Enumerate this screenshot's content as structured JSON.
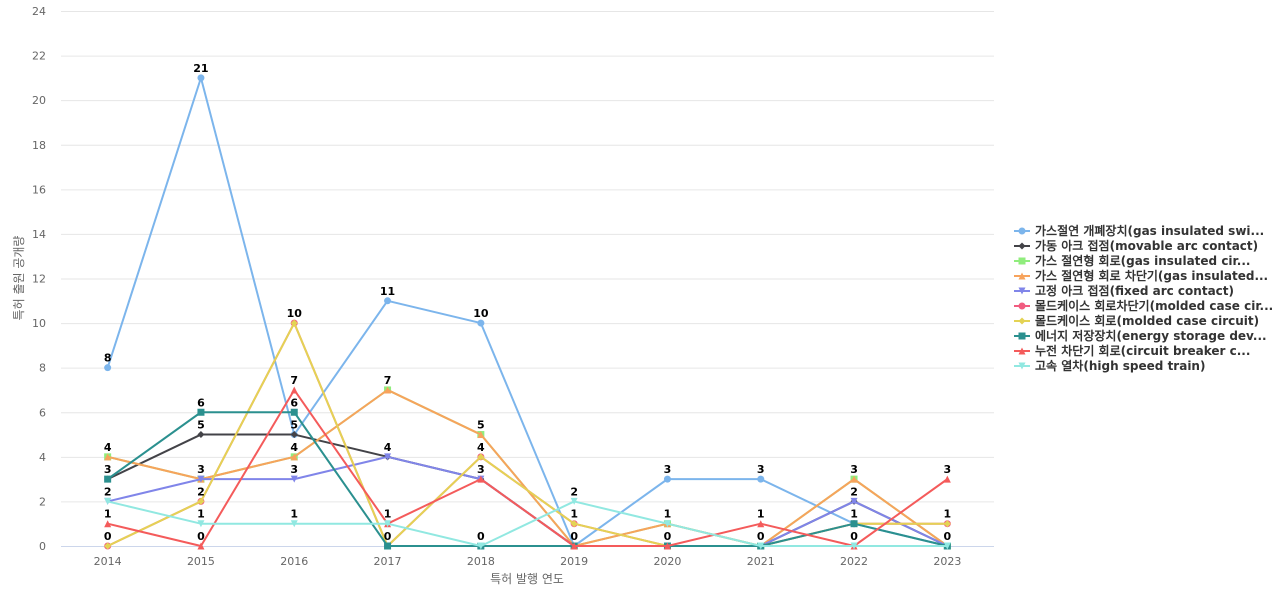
{
  "chart_data": {
    "type": "line",
    "title": "",
    "xlabel": "특허 발행 연도",
    "ylabel": "특허 출원 공개량",
    "x": [
      "2014",
      "2015",
      "2016",
      "2017",
      "2018",
      "2019",
      "2020",
      "2021",
      "2022",
      "2023"
    ],
    "ylim": [
      0,
      24
    ],
    "yticks": [
      0,
      2,
      4,
      6,
      8,
      10,
      12,
      14,
      16,
      18,
      20,
      22,
      24
    ],
    "grid": true,
    "legend_position": "right",
    "series": [
      {
        "name": "가스절연 개폐장치(gas insulated swi...",
        "color": "#7cb5ec",
        "marker": "circle",
        "values": [
          8,
          21,
          5,
          11,
          10,
          0,
          3,
          3,
          1,
          0
        ]
      },
      {
        "name": "가동 아크 접점(movable arc contact)",
        "color": "#434348",
        "marker": "diamond",
        "values": [
          3,
          5,
          5,
          4,
          3,
          0,
          0,
          0,
          2,
          0
        ]
      },
      {
        "name": "가스 절연형 회로(gas insulated cir...",
        "color": "#90ed7d",
        "marker": "square",
        "values": [
          4,
          3,
          4,
          7,
          5,
          0,
          1,
          0,
          3,
          0
        ]
      },
      {
        "name": "가스 절연형 회로 차단기(gas insulated...",
        "color": "#f7a35c",
        "marker": "triangle",
        "values": [
          4,
          3,
          4,
          7,
          5,
          0,
          1,
          0,
          3,
          0
        ]
      },
      {
        "name": "고정 아크 접점(fixed arc contact)",
        "color": "#8085e9",
        "marker": "triangle-down",
        "values": [
          2,
          3,
          3,
          4,
          3,
          0,
          0,
          0,
          2,
          0
        ]
      },
      {
        "name": "몰드케이스 회로차단기(molded case cir...",
        "color": "#f15c80",
        "marker": "circle",
        "values": [
          0,
          2,
          10,
          0,
          4,
          1,
          0,
          0,
          1,
          1
        ]
      },
      {
        "name": "몰드케이스 회로(molded case circuit)",
        "color": "#e4d354",
        "marker": "diamond",
        "values": [
          0,
          2,
          10,
          0,
          4,
          1,
          0,
          0,
          1,
          1
        ]
      },
      {
        "name": "에너지 저장장치(energy storage dev...",
        "color": "#2b908f",
        "marker": "square",
        "values": [
          3,
          6,
          6,
          0,
          0,
          0,
          0,
          0,
          1,
          0
        ]
      },
      {
        "name": "누전 차단기 회로(circuit breaker c...",
        "color": "#f45b5b",
        "marker": "triangle",
        "values": [
          1,
          0,
          7,
          1,
          3,
          0,
          0,
          1,
          0,
          3
        ]
      },
      {
        "name": "고속 열차(high speed train)",
        "color": "#91e8e1",
        "marker": "triangle-down",
        "values": [
          2,
          1,
          1,
          1,
          0,
          2,
          1,
          0,
          0,
          0
        ]
      }
    ],
    "data_labels": [
      {
        "x": "2014",
        "value": 8
      },
      {
        "x": "2014",
        "value": 4
      },
      {
        "x": "2014",
        "value": 3
      },
      {
        "x": "2014",
        "value": 2
      },
      {
        "x": "2014",
        "value": 1
      },
      {
        "x": "2014",
        "value": 0
      },
      {
        "x": "2015",
        "value": 21
      },
      {
        "x": "2015",
        "value": 6
      },
      {
        "x": "2015",
        "value": 5
      },
      {
        "x": "2015",
        "value": 3
      },
      {
        "x": "2015",
        "value": 2
      },
      {
        "x": "2015",
        "value": 1
      },
      {
        "x": "2015",
        "value": 0
      },
      {
        "x": "2016",
        "value": 10
      },
      {
        "x": "2016",
        "value": 7
      },
      {
        "x": "2016",
        "value": 6
      },
      {
        "x": "2016",
        "value": 5
      },
      {
        "x": "2016",
        "value": 4
      },
      {
        "x": "2016",
        "value": 3
      },
      {
        "x": "2016",
        "value": 1
      },
      {
        "x": "2017",
        "value": 11
      },
      {
        "x": "2017",
        "value": 7
      },
      {
        "x": "2017",
        "value": 4
      },
      {
        "x": "2017",
        "value": 1
      },
      {
        "x": "2017",
        "value": 0
      },
      {
        "x": "2018",
        "value": 10
      },
      {
        "x": "2018",
        "value": 5
      },
      {
        "x": "2018",
        "value": 4
      },
      {
        "x": "2018",
        "value": 3
      },
      {
        "x": "2018",
        "value": 0
      },
      {
        "x": "2019",
        "value": 2
      },
      {
        "x": "2019",
        "value": 1
      },
      {
        "x": "2019",
        "value": 0
      },
      {
        "x": "2020",
        "value": 3
      },
      {
        "x": "2020",
        "value": 1
      },
      {
        "x": "2020",
        "value": 0
      },
      {
        "x": "2021",
        "value": 3
      },
      {
        "x": "2021",
        "value": 1
      },
      {
        "x": "2021",
        "value": 0
      },
      {
        "x": "2022",
        "value": 3
      },
      {
        "x": "2022",
        "value": 2
      },
      {
        "x": "2022",
        "value": 1
      },
      {
        "x": "2022",
        "value": 0
      },
      {
        "x": "2023",
        "value": 3
      },
      {
        "x": "2023",
        "value": 1
      },
      {
        "x": "2023",
        "value": 0
      }
    ]
  }
}
